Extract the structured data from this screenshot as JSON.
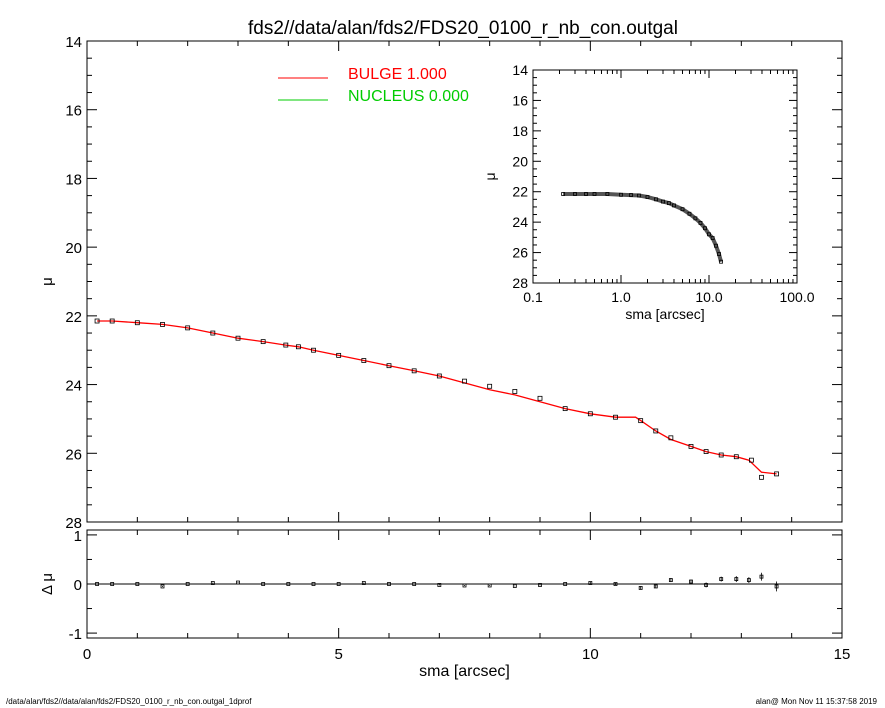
{
  "title": "fds2//data/alan/fds2/FDS20_0100_r_nb_con.outgal",
  "footer": {
    "left": "/data/alan/fds2//data/alan/fds2/FDS20_0100_r_nb_con.outgal_1dprof",
    "right": "alan@  Mon Nov 11 15:37:58 2019"
  },
  "colors": {
    "bulge": "#ff0000",
    "nucleus": "#00cc00",
    "data": "#000000"
  },
  "chart_data": [
    {
      "id": "main",
      "type": "scatter",
      "ylabel": "μ",
      "xlim": [
        0,
        15
      ],
      "ylim": [
        28,
        14
      ],
      "yticks": [
        14,
        16,
        18,
        20,
        22,
        24,
        26,
        28
      ],
      "legend": [
        {
          "label": "BULGE  1.000",
          "color": "#ff0000"
        },
        {
          "label": "NUCLEUS  0.000",
          "color": "#00cc00"
        }
      ],
      "data_points": {
        "x": [
          0.2,
          0.5,
          1.0,
          1.5,
          2.0,
          2.5,
          3.0,
          3.5,
          3.95,
          4.2,
          4.5,
          5.0,
          5.5,
          6.0,
          6.5,
          7.0,
          7.5,
          8.0,
          8.5,
          9.0,
          9.5,
          10.0,
          10.5,
          11.0,
          11.3,
          11.6,
          12.0,
          12.3,
          12.6,
          12.9,
          13.2,
          13.4,
          13.7
        ],
        "y": [
          22.15,
          22.15,
          22.2,
          22.25,
          22.35,
          22.5,
          22.65,
          22.75,
          22.85,
          22.9,
          23.0,
          23.15,
          23.3,
          23.45,
          23.6,
          23.75,
          23.9,
          24.05,
          24.2,
          24.4,
          24.7,
          24.85,
          24.95,
          25.05,
          25.35,
          25.55,
          25.8,
          25.95,
          26.05,
          26.1,
          26.2,
          26.7,
          26.6
        ]
      },
      "series": [
        {
          "name": "BULGE  1.000",
          "x": [
            0.2,
            0.5,
            1.0,
            1.5,
            2.0,
            2.5,
            3.0,
            3.5,
            3.95,
            4.2,
            4.5,
            5.0,
            5.5,
            6.0,
            6.5,
            7.0,
            7.5,
            8.0,
            8.5,
            9.0,
            9.5,
            10.0,
            10.5,
            10.9,
            11.0,
            11.3,
            11.6,
            12.0,
            12.3,
            12.6,
            12.9,
            13.15,
            13.4,
            13.7
          ],
          "y": [
            22.15,
            22.15,
            22.2,
            22.25,
            22.35,
            22.5,
            22.65,
            22.75,
            22.85,
            22.9,
            23.0,
            23.15,
            23.3,
            23.45,
            23.6,
            23.75,
            23.95,
            24.15,
            24.3,
            24.5,
            24.7,
            24.85,
            24.95,
            24.95,
            25.05,
            25.35,
            25.6,
            25.8,
            25.95,
            26.05,
            26.1,
            26.2,
            26.55,
            26.6
          ]
        }
      ]
    },
    {
      "id": "residual",
      "type": "scatter",
      "xlabel": "sma [arcsec]",
      "ylabel": "Δ μ",
      "xlim": [
        0,
        15
      ],
      "ylim": [
        -1.1,
        1.1
      ],
      "xticks": [
        0,
        5,
        10,
        15
      ],
      "yticks": [
        -1,
        0,
        1
      ],
      "x": [
        0.2,
        0.5,
        1.0,
        1.5,
        2.0,
        2.5,
        3.0,
        3.5,
        4.0,
        4.5,
        5.0,
        5.5,
        6.0,
        6.5,
        7.0,
        7.5,
        8.0,
        8.5,
        9.0,
        9.5,
        10.0,
        10.5,
        11.0,
        11.3,
        11.6,
        12.0,
        12.3,
        12.6,
        12.9,
        13.15,
        13.4,
        13.7
      ],
      "y": [
        0.0,
        0.0,
        0.0,
        -0.05,
        0.0,
        0.02,
        0.03,
        0.0,
        0.0,
        0.0,
        0.0,
        0.02,
        0.0,
        0.0,
        -0.02,
        -0.03,
        -0.03,
        -0.04,
        -0.02,
        0.0,
        0.02,
        0.0,
        -0.08,
        -0.05,
        0.08,
        0.05,
        -0.02,
        0.1,
        0.1,
        0.08,
        0.15,
        -0.05
      ],
      "yerr": [
        0.01,
        0.01,
        0.01,
        0.01,
        0.01,
        0.01,
        0.01,
        0.01,
        0.01,
        0.01,
        0.01,
        0.01,
        0.01,
        0.01,
        0.01,
        0.01,
        0.01,
        0.01,
        0.01,
        0.01,
        0.02,
        0.02,
        0.03,
        0.03,
        0.04,
        0.04,
        0.05,
        0.05,
        0.06,
        0.06,
        0.08,
        0.1
      ]
    },
    {
      "id": "inset",
      "type": "scatter",
      "xlabel": "sma [arcsec]",
      "ylabel": "μ",
      "xscale": "log",
      "xlim": [
        0.1,
        100
      ],
      "ylim": [
        28,
        14
      ],
      "xticks": [
        0.1,
        1,
        10,
        100
      ],
      "xticklabels": [
        "0.1",
        "1.0",
        "10.0",
        "100.0"
      ],
      "yticks": [
        14,
        16,
        18,
        20,
        22,
        24,
        26,
        28
      ],
      "x": [
        0.22,
        0.3,
        0.4,
        0.5,
        0.7,
        1.0,
        1.3,
        1.6,
        2.0,
        2.5,
        3.0,
        3.5,
        4.0,
        5.0,
        6.0,
        7.0,
        8.0,
        9.0,
        10.0,
        11.0,
        12.0,
        13.0,
        13.7
      ],
      "y": [
        22.15,
        22.15,
        22.15,
        22.15,
        22.15,
        22.2,
        22.22,
        22.25,
        22.35,
        22.5,
        22.65,
        22.75,
        22.9,
        23.15,
        23.45,
        23.75,
        24.05,
        24.4,
        24.8,
        25.05,
        25.55,
        26.1,
        26.6
      ]
    }
  ]
}
